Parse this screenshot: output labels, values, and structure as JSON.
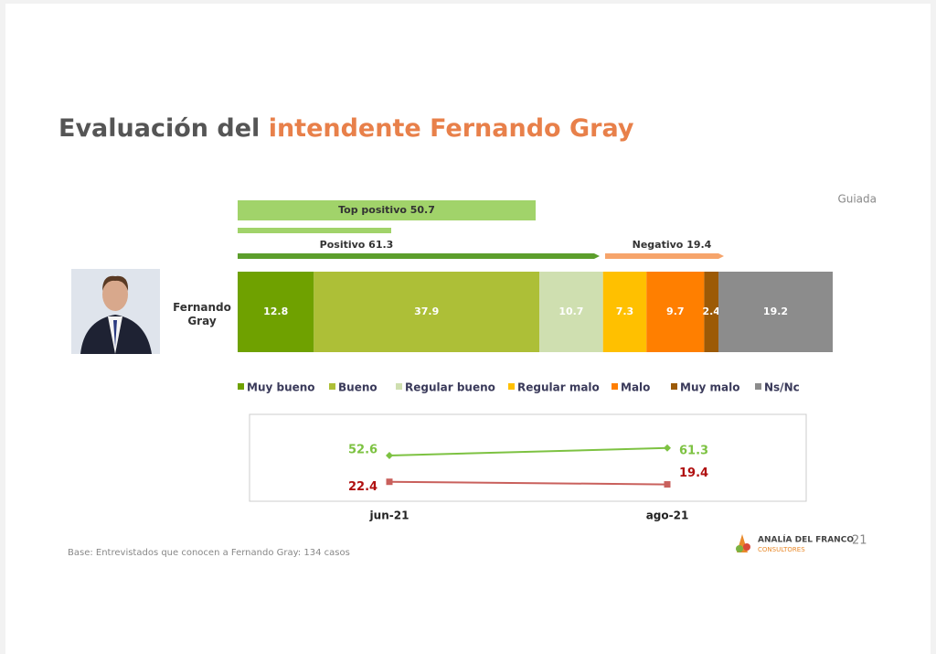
{
  "header": {
    "title_a": "Evaluación del ",
    "title_b": "intendente Fernando Gray",
    "note": "Guiada"
  },
  "brackets": [
    "Top positivo 50.7",
    "Positivo 61.3",
    "Negativo 19.4"
  ],
  "chart_data": [
    {
      "type": "stacked-bar",
      "categories": [
        "Fernando Gray"
      ],
      "xlim": [
        0,
        100
      ],
      "series": [
        {
          "name": "Muy bueno",
          "color": "#6fa100",
          "values": [
            12.8
          ]
        },
        {
          "name": "Bueno",
          "color": "#adbf37",
          "values": [
            37.9
          ]
        },
        {
          "name": "Regular bueno",
          "color": "#cfdfb0",
          "values": [
            10.7
          ]
        },
        {
          "name": "Regular malo",
          "color": "#ffc000",
          "values": [
            7.3
          ]
        },
        {
          "name": "Malo",
          "color": "#ff7f00",
          "values": [
            9.7
          ]
        },
        {
          "name": "Muy malo",
          "color": "#9c5a06",
          "values": [
            2.4
          ]
        },
        {
          "name": "Ns/Nc",
          "color": "#8c8c8c",
          "values": [
            19.2
          ]
        }
      ]
    },
    {
      "type": "line",
      "categories": [
        "jun-21",
        "ago-21"
      ],
      "ylim": [
        0,
        100
      ],
      "series": [
        {
          "color": "#7dc242",
          "label_color": "#7dc242",
          "values": [
            52.6,
            61.3
          ]
        },
        {
          "color": "#c9605c",
          "label_color": "#b01010",
          "values": [
            22.4,
            19.4
          ]
        }
      ]
    }
  ],
  "footer": {
    "base": "Base: Entrevistados que conocen a Fernando Gray: 134 casos",
    "brand": "ANALÍA DEL FRANCO",
    "brand_sub": "CONSULTORES",
    "page": "21"
  }
}
